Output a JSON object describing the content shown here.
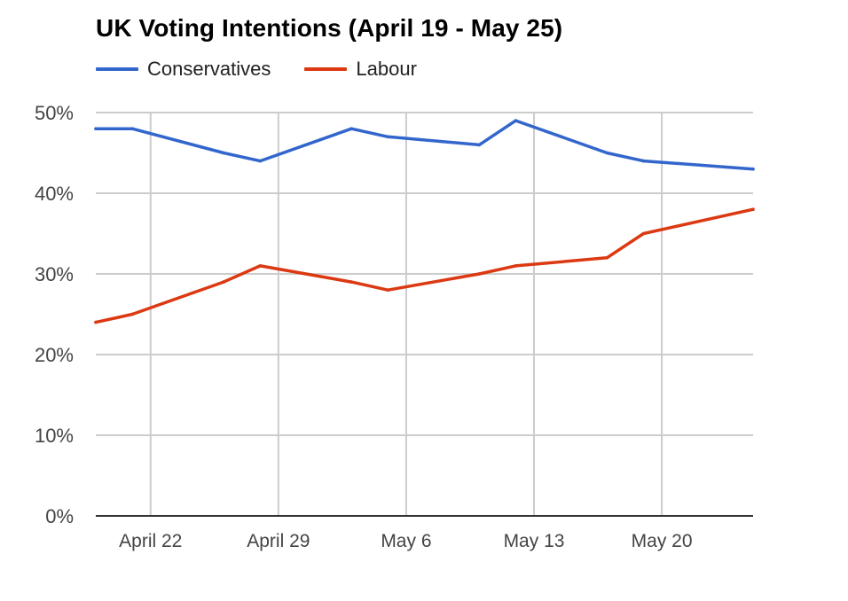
{
  "chart_data": {
    "type": "line",
    "title": "UK Voting Intentions (April 19 - May 25)",
    "xlabel": "",
    "ylabel": "",
    "ylim": [
      0,
      50
    ],
    "xlim": [
      0,
      36
    ],
    "grid": true,
    "legend_position": "top-left",
    "y_ticks": [
      {
        "value": 0,
        "label": "0%"
      },
      {
        "value": 10,
        "label": "10%"
      },
      {
        "value": 20,
        "label": "20%"
      },
      {
        "value": 30,
        "label": "30%"
      },
      {
        "value": 40,
        "label": "40%"
      },
      {
        "value": 50,
        "label": "50%"
      }
    ],
    "x_ticks": [
      {
        "value": 3,
        "label": "April 22"
      },
      {
        "value": 10,
        "label": "April 29"
      },
      {
        "value": 17,
        "label": "May 6"
      },
      {
        "value": 24,
        "label": "May 13"
      },
      {
        "value": 31,
        "label": "May 20"
      }
    ],
    "series": [
      {
        "name": "Conservatives",
        "color": "#3366cc",
        "points": [
          {
            "x": 0,
            "y": 48
          },
          {
            "x": 2,
            "y": 48
          },
          {
            "x": 7,
            "y": 45
          },
          {
            "x": 9,
            "y": 44
          },
          {
            "x": 14,
            "y": 48
          },
          {
            "x": 16,
            "y": 47
          },
          {
            "x": 21,
            "y": 46
          },
          {
            "x": 23,
            "y": 49
          },
          {
            "x": 28,
            "y": 45
          },
          {
            "x": 30,
            "y": 44
          },
          {
            "x": 36,
            "y": 43
          }
        ]
      },
      {
        "name": "Labour",
        "color": "#dc3912",
        "points": [
          {
            "x": 0,
            "y": 24
          },
          {
            "x": 2,
            "y": 25
          },
          {
            "x": 7,
            "y": 29
          },
          {
            "x": 9,
            "y": 31
          },
          {
            "x": 14,
            "y": 29
          },
          {
            "x": 16,
            "y": 28
          },
          {
            "x": 21,
            "y": 30
          },
          {
            "x": 23,
            "y": 31
          },
          {
            "x": 28,
            "y": 32
          },
          {
            "x": 30,
            "y": 35
          },
          {
            "x": 36,
            "y": 38
          }
        ]
      }
    ]
  },
  "colors": {
    "grid": "#cccccc",
    "baseline": "#333333",
    "tick_label": "#444444"
  }
}
